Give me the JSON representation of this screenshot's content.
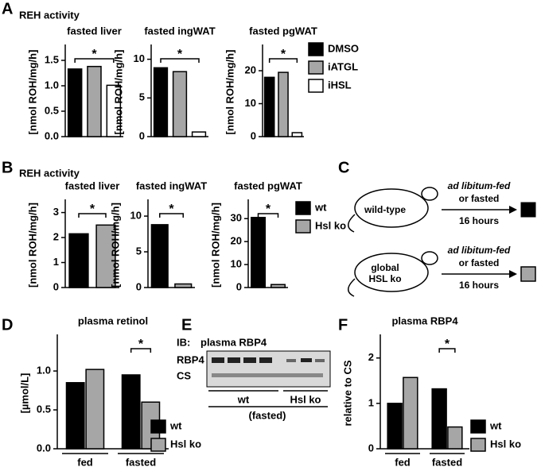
{
  "figure": {
    "letters": [
      "A",
      "B",
      "C",
      "D",
      "E",
      "F"
    ],
    "header_a": "REH activity",
    "header_b": "REH activity",
    "c": {
      "wt_mouse": "wild-type",
      "ko_mouse_1": "global",
      "ko_mouse_2": "HSL ko",
      "cond_1a": "ad libitum-fed",
      "cond_1b": "or fasted",
      "time_1": "16 hours",
      "cond_2a": "ad libitum-fed",
      "cond_2b": "or fasted",
      "time_2": "16 hours"
    },
    "e": {
      "ib": "IB:",
      "title": "plasma RBP4",
      "row_1": "RBP4",
      "row_2": "CS",
      "group_1": "wt",
      "group_2": "Hsl ko",
      "note": "(fasted)"
    }
  },
  "chart_data": [
    {
      "type": "bar",
      "title": "fasted liver",
      "ylabel": "[nmol ROH/mg/h]",
      "values": [
        1.33,
        1.38,
        1.01
      ],
      "ylim": [
        0,
        1.75
      ],
      "yticks": [
        {
          "value": 0,
          "label": "0.0"
        },
        0.5,
        {
          "value": 1,
          "label": "1.0"
        },
        1.5
      ],
      "annotation": "*"
    },
    {
      "type": "bar",
      "title": "fasted ingWAT",
      "ylabel": "[nmol ROH/mg/h]",
      "values": [
        8.9,
        8.4,
        0.6
      ],
      "ylim": [
        0,
        11.5
      ],
      "yticks": [
        0,
        5,
        10
      ],
      "annotation": "*"
    },
    {
      "type": "bar",
      "title": "fasted pgWAT",
      "ylabel": "[nmol ROH/mg/h]",
      "values": [
        18,
        19.5,
        1.2
      ],
      "ylim": [
        0,
        27
      ],
      "yticks": [
        0,
        10,
        20
      ],
      "annotation": "*",
      "legend": [
        {
          "name": "DMSO",
          "color": "#000000"
        },
        {
          "name": "iATGL",
          "color": "#a6a6a6"
        },
        {
          "name": "iHSL",
          "color": "#ffffff"
        }
      ]
    },
    {
      "type": "bar",
      "title": "fasted liver",
      "ylabel": "[nmol ROH/mg/h]",
      "values": [
        2.15,
        2.5
      ],
      "ylim": [
        0,
        3.4
      ],
      "yticks": [
        0,
        1,
        2,
        3
      ],
      "annotation": "*"
    },
    {
      "type": "bar",
      "title": "fasted ingWAT",
      "ylabel": "[nmol ROH/mg/h]",
      "values": [
        8.8,
        0.5
      ],
      "ylim": [
        0,
        11.9
      ],
      "yticks": [
        0,
        5,
        10
      ],
      "annotation": "*"
    },
    {
      "type": "bar",
      "title": "fasted pgWAT",
      "ylabel": "[nmol ROH/mg/h]",
      "values": [
        30.5,
        1.3
      ],
      "ylim": [
        0,
        37
      ],
      "yticks": [
        0,
        10,
        20,
        30
      ],
      "annotation": "*",
      "legend": [
        {
          "name": "wt",
          "color": "#000000"
        },
        {
          "name": "Hsl ko",
          "color": "#a6a6a6"
        }
      ]
    },
    {
      "type": "grouped_bar",
      "title": "plasma retinol",
      "ylabel": "[µmol/L]",
      "categories": [
        "fed",
        "fasted"
      ],
      "series": [
        {
          "name": "wt",
          "color": "#000000",
          "values": [
            0.85,
            0.95
          ]
        },
        {
          "name": "Hsl ko",
          "color": "#a6a6a6",
          "values": [
            1.02,
            0.6
          ]
        }
      ],
      "ylim": [
        0,
        1.43
      ],
      "yticks": [
        {
          "value": 0,
          "label": "0.0"
        },
        0.5,
        {
          "value": 1,
          "label": "1.0"
        }
      ],
      "annotation": "*"
    },
    {
      "type": "grouped_bar",
      "title": "plasma RBP4",
      "ylabel": "relative to CS",
      "categories": [
        "fed",
        "fasted"
      ],
      "series": [
        {
          "name": "wt",
          "color": "#000000",
          "values": [
            1.0,
            1.32
          ]
        },
        {
          "name": "Hsl ko",
          "color": "#a6a6a6",
          "values": [
            1.57,
            0.48
          ]
        }
      ],
      "ylim": [
        0,
        2.45
      ],
      "yticks": [
        0,
        1,
        2
      ],
      "annotation": "*"
    }
  ]
}
